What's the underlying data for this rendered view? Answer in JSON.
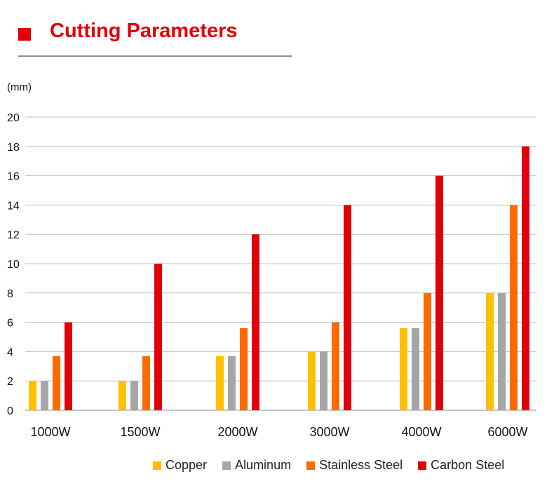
{
  "title": "Cutting Parameters",
  "chart_data": {
    "type": "bar",
    "ylabel": "(mm)",
    "ylim": [
      0,
      20
    ],
    "yticks": [
      0,
      2,
      4,
      6,
      8,
      10,
      12,
      14,
      16,
      18,
      20
    ],
    "categories": [
      "1000W",
      "1500W",
      "2000W",
      "3000W",
      "4000W",
      "6000W"
    ],
    "series": [
      {
        "name": "Copper",
        "color": "#ffc000",
        "values": [
          2,
          2,
          3.7,
          4,
          5.6,
          8
        ]
      },
      {
        "name": "Aluminum",
        "color": "#a6a6a6",
        "values": [
          2,
          2,
          3.7,
          4,
          5.6,
          8
        ]
      },
      {
        "name": "Stainless Steel",
        "color": "#ff6a00",
        "values": [
          3.7,
          3.7,
          5.6,
          6,
          8,
          14
        ]
      },
      {
        "name": "Carbon Steel",
        "color": "#e0000b",
        "values": [
          6,
          10,
          12,
          14,
          16,
          18
        ]
      }
    ],
    "grid": true,
    "legend": "bottom"
  }
}
